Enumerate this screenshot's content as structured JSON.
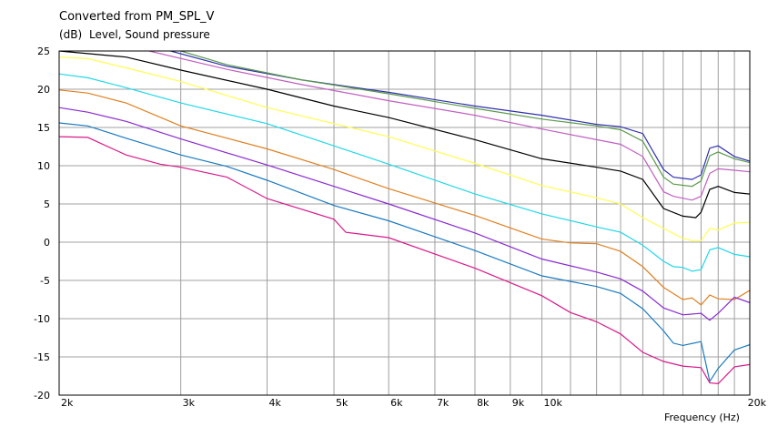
{
  "chart_data": {
    "type": "line",
    "title": "Converted from PM_SPL_V",
    "subtitle_unit": "(dB)",
    "subtitle_label": "Level, Sound pressure",
    "xlabel": "Frequency",
    "xlabel_unit": "(Hz)",
    "x_scale": "log",
    "xlim": [
      2000,
      20000
    ],
    "ylim": [
      -20,
      25
    ],
    "grid": true,
    "legend": "none",
    "x_ticks": [
      {
        "value": 2000,
        "label": "2k"
      },
      {
        "value": 3000,
        "label": "3k"
      },
      {
        "value": 4000,
        "label": "4k"
      },
      {
        "value": 5000,
        "label": "5k"
      },
      {
        "value": 6000,
        "label": "6k"
      },
      {
        "value": 7000,
        "label": "7k"
      },
      {
        "value": 8000,
        "label": "8k"
      },
      {
        "value": 9000,
        "label": "9k"
      },
      {
        "value": 10000,
        "label": "10k"
      },
      {
        "value": 20000,
        "label": "20k"
      }
    ],
    "x_minor_ticks": [
      11000,
      12000,
      13000,
      14000,
      15000,
      16000,
      17000,
      18000,
      19000
    ],
    "y_ticks": [
      {
        "value": 25,
        "label": "25"
      },
      {
        "value": 20,
        "label": "20"
      },
      {
        "value": 15,
        "label": "15"
      },
      {
        "value": 10,
        "label": "10"
      },
      {
        "value": 5,
        "label": "5"
      },
      {
        "value": 0,
        "label": "0"
      },
      {
        "value": -5,
        "label": "-5"
      },
      {
        "value": -10,
        "label": "-10"
      },
      {
        "value": -15,
        "label": "-15"
      },
      {
        "value": -20,
        "label": "-20"
      }
    ],
    "series": [
      {
        "color": "#3030b0",
        "points": [
          [
            2900,
            25
          ],
          [
            3500,
            23
          ],
          [
            4500,
            21.2
          ],
          [
            6000,
            19.6
          ],
          [
            8000,
            17.8
          ],
          [
            10000,
            16.6
          ],
          [
            12000,
            15.4
          ],
          [
            13000,
            15.1
          ],
          [
            14000,
            14.2
          ],
          [
            15000,
            9.5
          ],
          [
            15500,
            8.5
          ],
          [
            16500,
            8.2
          ],
          [
            17000,
            8.8
          ],
          [
            17500,
            12.3
          ],
          [
            18000,
            12.6
          ],
          [
            19000,
            11.2
          ],
          [
            20000,
            10.6
          ]
        ]
      },
      {
        "color": "#5a9a4a",
        "points": [
          [
            3000,
            25
          ],
          [
            3500,
            23.2
          ],
          [
            4500,
            21.2
          ],
          [
            6000,
            19.4
          ],
          [
            8000,
            17.5
          ],
          [
            10000,
            16.1
          ],
          [
            12000,
            15.2
          ],
          [
            13000,
            14.7
          ],
          [
            14000,
            13.2
          ],
          [
            15000,
            8.5
          ],
          [
            15500,
            7.6
          ],
          [
            16500,
            7.3
          ],
          [
            17000,
            8
          ],
          [
            17500,
            11.3
          ],
          [
            18000,
            11.8
          ],
          [
            19000,
            10.9
          ],
          [
            20000,
            10.4
          ]
        ]
      },
      {
        "color": "#c060c0",
        "points": [
          [
            2700,
            25
          ],
          [
            3500,
            22.6
          ],
          [
            4500,
            20.6
          ],
          [
            6000,
            18.5
          ],
          [
            8000,
            16.6
          ],
          [
            10000,
            14.8
          ],
          [
            12000,
            13.4
          ],
          [
            13000,
            12.8
          ],
          [
            14000,
            11.2
          ],
          [
            15000,
            6.6
          ],
          [
            15500,
            6.0
          ],
          [
            16500,
            5.5
          ],
          [
            17000,
            6
          ],
          [
            17500,
            9.0
          ],
          [
            18000,
            9.6
          ],
          [
            19000,
            9.4
          ],
          [
            20000,
            9.2
          ]
        ]
      },
      {
        "color": "#000000",
        "points": [
          [
            2000,
            25
          ],
          [
            2500,
            24.2
          ],
          [
            3000,
            22.5
          ],
          [
            4000,
            20
          ],
          [
            5000,
            17.8
          ],
          [
            6000,
            16.3
          ],
          [
            8000,
            13.4
          ],
          [
            10000,
            10.9
          ],
          [
            12000,
            9.8
          ],
          [
            13000,
            9.3
          ],
          [
            14000,
            8.2
          ],
          [
            15000,
            4.4
          ],
          [
            16000,
            3.4
          ],
          [
            16700,
            3.2
          ],
          [
            17000,
            3.9
          ],
          [
            17500,
            6.9
          ],
          [
            18000,
            7.3
          ],
          [
            19000,
            6.5
          ],
          [
            20000,
            6.3
          ]
        ]
      },
      {
        "color": "#ffff50",
        "points": [
          [
            2000,
            24.2
          ],
          [
            2200,
            24
          ],
          [
            2500,
            22.8
          ],
          [
            3000,
            21
          ],
          [
            4000,
            17.6
          ],
          [
            5000,
            15.5
          ],
          [
            6000,
            13.8
          ],
          [
            8000,
            10.3
          ],
          [
            10000,
            7.4
          ],
          [
            12000,
            5.8
          ],
          [
            13000,
            5.0
          ],
          [
            14000,
            3.2
          ],
          [
            15000,
            1.8
          ],
          [
            16000,
            0.5
          ],
          [
            16500,
            0.2
          ],
          [
            17000,
            0.2
          ],
          [
            17500,
            1.8
          ],
          [
            18000,
            1.6
          ],
          [
            19000,
            2.5
          ],
          [
            20000,
            2.6
          ]
        ]
      },
      {
        "color": "#20d8e8",
        "points": [
          [
            2000,
            22
          ],
          [
            2200,
            21.5
          ],
          [
            2500,
            20.2
          ],
          [
            3000,
            18.2
          ],
          [
            4000,
            15.5
          ],
          [
            5000,
            12.6
          ],
          [
            6000,
            10.2
          ],
          [
            8000,
            6.3
          ],
          [
            10000,
            3.7
          ],
          [
            12000,
            2.0
          ],
          [
            13000,
            1.3
          ],
          [
            14000,
            -0.4
          ],
          [
            15000,
            -2.5
          ],
          [
            15500,
            -3.2
          ],
          [
            16000,
            -3.3
          ],
          [
            16500,
            -3.8
          ],
          [
            17000,
            -3.6
          ],
          [
            17500,
            -1
          ],
          [
            18000,
            -0.7
          ],
          [
            19000,
            -1.6
          ],
          [
            20000,
            -1.9
          ]
        ]
      },
      {
        "color": "#e08020",
        "points": [
          [
            2000,
            19.9
          ],
          [
            2200,
            19.5
          ],
          [
            2500,
            18.2
          ],
          [
            3000,
            15.2
          ],
          [
            4000,
            12.2
          ],
          [
            5000,
            9.5
          ],
          [
            6000,
            7.0
          ],
          [
            8000,
            3.5
          ],
          [
            10000,
            0.4
          ],
          [
            11000,
            -0.1
          ],
          [
            12000,
            -0.2
          ],
          [
            13000,
            -1.2
          ],
          [
            14000,
            -3.2
          ],
          [
            15000,
            -5.9
          ],
          [
            16000,
            -7.5
          ],
          [
            16500,
            -7.3
          ],
          [
            17000,
            -8.2
          ],
          [
            17500,
            -6.9
          ],
          [
            18000,
            -7.4
          ],
          [
            19000,
            -7.5
          ],
          [
            20000,
            -6.3
          ]
        ]
      },
      {
        "color": "#8a2ad0",
        "points": [
          [
            2000,
            17.6
          ],
          [
            2200,
            17
          ],
          [
            2500,
            15.8
          ],
          [
            3000,
            13.5
          ],
          [
            4000,
            10.1
          ],
          [
            5000,
            7.3
          ],
          [
            6000,
            5.0
          ],
          [
            8000,
            1.2
          ],
          [
            10000,
            -2.2
          ],
          [
            12000,
            -3.9
          ],
          [
            13000,
            -4.8
          ],
          [
            14000,
            -6.4
          ],
          [
            15000,
            -8.6
          ],
          [
            16000,
            -9.5
          ],
          [
            17000,
            -9.3
          ],
          [
            17500,
            -10.2
          ],
          [
            18000,
            -9.3
          ],
          [
            19000,
            -7.2
          ],
          [
            20000,
            -7.9
          ]
        ]
      },
      {
        "color": "#1a7ac0",
        "points": [
          [
            2000,
            15.6
          ],
          [
            2200,
            15.2
          ],
          [
            2500,
            13.6
          ],
          [
            3000,
            11.4
          ],
          [
            3500,
            9.9
          ],
          [
            4000,
            8.1
          ],
          [
            5000,
            4.8
          ],
          [
            6000,
            2.8
          ],
          [
            8000,
            -1.1
          ],
          [
            10000,
            -4.4
          ],
          [
            12000,
            -5.8
          ],
          [
            13000,
            -6.7
          ],
          [
            14000,
            -8.7
          ],
          [
            15000,
            -11.6
          ],
          [
            15500,
            -13.2
          ],
          [
            16000,
            -13.5
          ],
          [
            17000,
            -13
          ],
          [
            17500,
            -18.2
          ],
          [
            18000,
            -16.5
          ],
          [
            19000,
            -14.1
          ],
          [
            20000,
            -13.4
          ]
        ]
      },
      {
        "color": "#d81a8a",
        "points": [
          [
            2000,
            13.8
          ],
          [
            2200,
            13.7
          ],
          [
            2500,
            11.4
          ],
          [
            2800,
            10.2
          ],
          [
            3000,
            9.8
          ],
          [
            3500,
            8.5
          ],
          [
            4000,
            5.7
          ],
          [
            5000,
            3.0
          ],
          [
            5200,
            1.3
          ],
          [
            6000,
            0.6
          ],
          [
            8000,
            -3.4
          ],
          [
            10000,
            -7.0
          ],
          [
            11000,
            -9.2
          ],
          [
            12000,
            -10.4
          ],
          [
            13000,
            -12
          ],
          [
            14000,
            -14.4
          ],
          [
            15000,
            -15.6
          ],
          [
            16000,
            -16.2
          ],
          [
            17000,
            -16.4
          ],
          [
            17500,
            -18.4
          ],
          [
            18000,
            -18.5
          ],
          [
            19000,
            -16.3
          ],
          [
            20000,
            -16
          ]
        ]
      }
    ]
  }
}
